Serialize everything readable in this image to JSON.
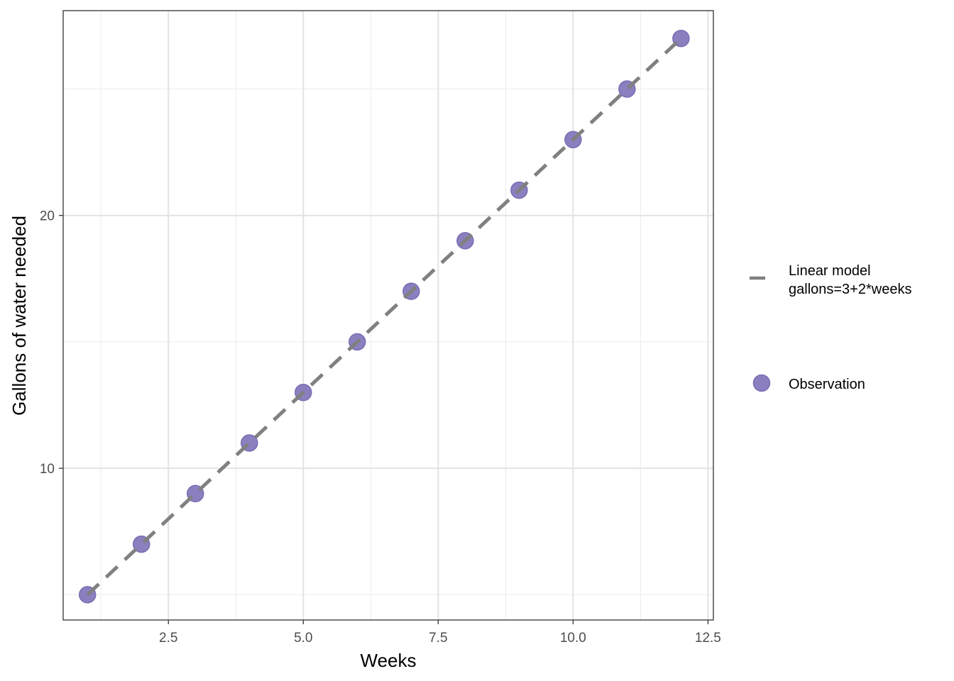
{
  "chart_data": {
    "type": "scatter",
    "title": "",
    "xlabel": "Weeks",
    "ylabel": "Gallons of water needed",
    "xlim": [
      0.55,
      12.6
    ],
    "ylim": [
      4.0,
      28.1
    ],
    "x_ticks": [
      2.5,
      5.0,
      7.5,
      10.0,
      12.5
    ],
    "x_tick_labels": [
      "2.5",
      "5.0",
      "7.5",
      "10.0",
      "12.5"
    ],
    "y_ticks": [
      10,
      20
    ],
    "y_tick_labels": [
      "10",
      "20"
    ],
    "x_minor_ticks": [
      1.25,
      3.75,
      6.25,
      8.75,
      11.25
    ],
    "y_minor_ticks": [
      5,
      15,
      25
    ],
    "grid": true,
    "legend_position": "right",
    "series": [
      {
        "name": "Observation",
        "kind": "points",
        "color": "#8b7fbf",
        "x": [
          1,
          2,
          3,
          4,
          5,
          6,
          7,
          8,
          9,
          10,
          11,
          12
        ],
        "y": [
          5,
          7,
          9,
          11,
          13,
          15,
          17,
          19,
          21,
          23,
          25,
          27
        ]
      },
      {
        "name": "Linear model gallons=3+2*weeks",
        "legend_lines": [
          "Linear model",
          "gallons=3+2*weeks"
        ],
        "kind": "line",
        "style": "dashed",
        "color": "#808080",
        "x": [
          1,
          12
        ],
        "y": [
          5,
          27
        ]
      }
    ]
  }
}
